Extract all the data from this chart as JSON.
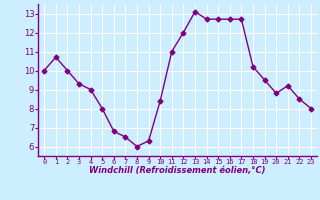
{
  "x": [
    0,
    1,
    2,
    3,
    4,
    5,
    6,
    7,
    8,
    9,
    10,
    11,
    12,
    13,
    14,
    15,
    16,
    17,
    18,
    19,
    20,
    21,
    22,
    23
  ],
  "y": [
    10.0,
    10.7,
    10.0,
    9.3,
    9.0,
    8.0,
    6.8,
    6.5,
    6.0,
    6.3,
    8.4,
    11.0,
    12.0,
    13.1,
    12.7,
    12.7,
    12.7,
    12.7,
    10.2,
    9.5,
    8.8,
    9.2,
    8.5,
    8.0
  ],
  "line_color": "#800080",
  "marker": "D",
  "marker_size": 2.5,
  "bg_color": "#cceeff",
  "grid_color": "#ffffff",
  "xlabel": "Windchill (Refroidissement éolien,°C)",
  "xlabel_color": "#800080",
  "tick_color": "#800080",
  "axis_color": "#800080",
  "xlim": [
    -0.5,
    23.5
  ],
  "ylim": [
    5.5,
    13.5
  ],
  "yticks": [
    6,
    7,
    8,
    9,
    10,
    11,
    12,
    13
  ],
  "xticks": [
    0,
    1,
    2,
    3,
    4,
    5,
    6,
    7,
    8,
    9,
    10,
    11,
    12,
    13,
    14,
    15,
    16,
    17,
    18,
    19,
    20,
    21,
    22,
    23
  ],
  "xtick_labels": [
    "0",
    "1",
    "2",
    "3",
    "4",
    "5",
    "6",
    "7",
    "8",
    "9",
    "10",
    "11",
    "12",
    "13",
    "14",
    "15",
    "16",
    "17",
    "18",
    "19",
    "20",
    "21",
    "22",
    "23"
  ]
}
